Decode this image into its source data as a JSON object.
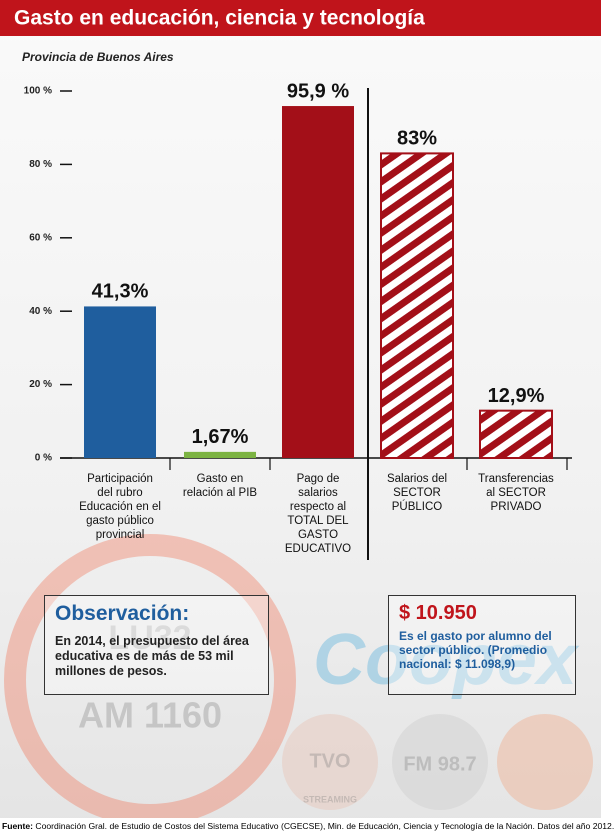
{
  "header": {
    "title": "Gasto en educación, ciencia y tecnología"
  },
  "chart_data": {
    "type": "bar",
    "subtitle": "Provincia de Buenos Aires",
    "categories": [
      "Participación\ndel rubro\nEducación en el\ngasto público\nprovincial",
      "Gasto en\nrelación al PIB",
      "Pago de\nsalarios\nrespecto al\nTOTAL DEL\nGASTO\nEDUCATIVO",
      "Salarios del\nSECTOR\nPÚBLICO",
      "Transferencias\nal SECTOR\nPRIVADO"
    ],
    "values": [
      41.3,
      1.67,
      95.9,
      83,
      12.9
    ],
    "value_labels": [
      "41,3%",
      "1,67%",
      "95,9 %",
      "83%",
      "12,9%"
    ],
    "colors": [
      "#1f5e9e",
      "#7cb342",
      "#a30f18",
      "#a30f18",
      "#a30f18"
    ],
    "hatch": [
      false,
      false,
      false,
      true,
      true
    ],
    "ylim": [
      0,
      100
    ],
    "yticks": [
      {
        "value": 0,
        "label": "0 %"
      },
      {
        "value": 20,
        "label": "20 %"
      },
      {
        "value": 40,
        "label": "40 %"
      },
      {
        "value": 60,
        "label": "60 %"
      },
      {
        "value": 80,
        "label": "80 %"
      },
      {
        "value": 100,
        "label": "100 %"
      }
    ]
  },
  "notes": [
    {
      "title": "Observación:",
      "text": "En 2014, el presupuesto del área educativa es de más de 53 mil millones de pesos."
    },
    {
      "title": "$ 10.950",
      "text": "Es el gasto por alumno del sector público. (Promedio nacional: $ 11.098,9)"
    }
  ],
  "watermarks": [
    "LU32",
    "AM 1160",
    "Coopex",
    "TVO",
    "FM 98.7",
    "STREAMING"
  ],
  "source_label": "Fuente:",
  "source": "Coordinación Gral. de Estudio de Costos del Sistema Educativo (CGECSE), Min. de Educación, Ciencia y Tecnología de la Nación. Datos del año 2012."
}
